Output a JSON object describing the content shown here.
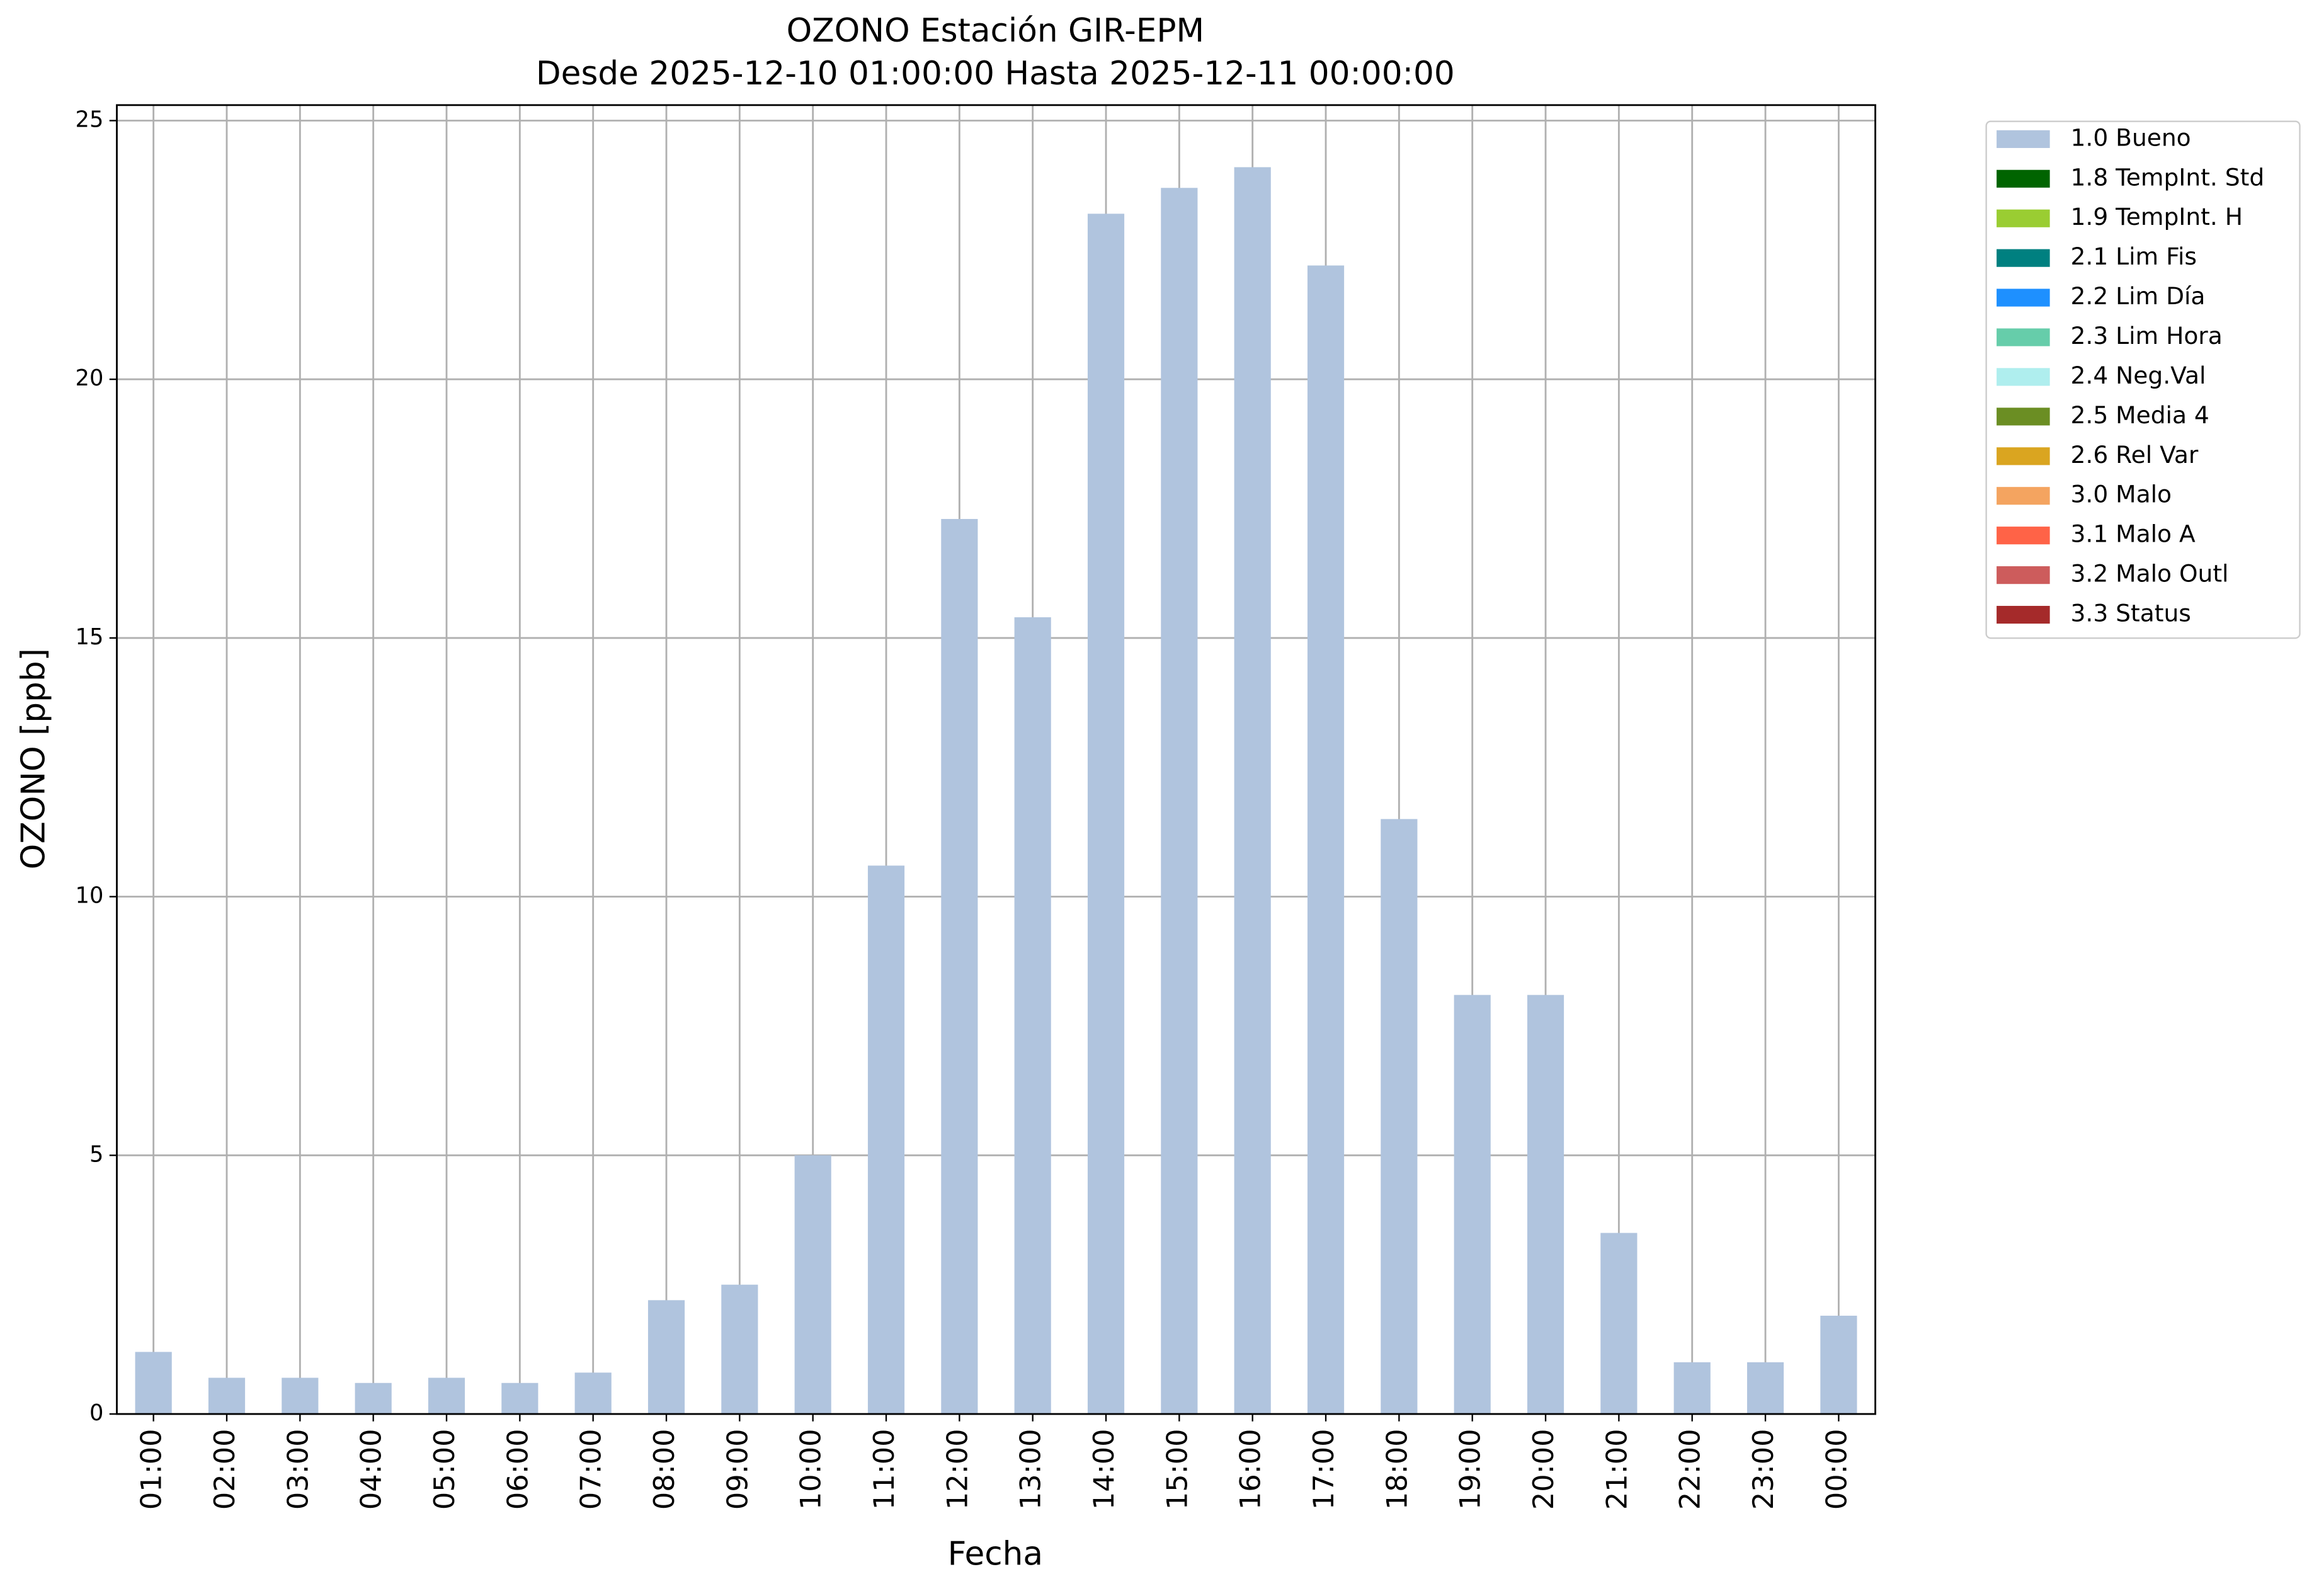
{
  "chart_data": {
    "type": "bar",
    "stacked": true,
    "title": "OZONO Estación GIR-EPM",
    "subtitle": "Desde 2025-12-10 01:00:00 Hasta 2025-12-11 00:00:00",
    "x_label": "Fecha",
    "y_label": "OZONO [ppb]",
    "categories": [
      "01:00",
      "02:00",
      "03:00",
      "04:00",
      "05:00",
      "06:00",
      "07:00",
      "08:00",
      "09:00",
      "10:00",
      "11:00",
      "12:00",
      "13:00",
      "14:00",
      "15:00",
      "16:00",
      "17:00",
      "18:00",
      "19:00",
      "20:00",
      "21:00",
      "22:00",
      "23:00",
      "00:00"
    ],
    "series": [
      {
        "name": "1.0 Bueno",
        "color": "#b0c4de",
        "values": [
          1.2,
          0.7,
          0.7,
          0.6,
          0.7,
          0.6,
          0.8,
          2.2,
          2.5,
          5.0,
          10.6,
          17.3,
          15.4,
          23.2,
          23.7,
          24.1,
          22.2,
          11.5,
          8.1,
          8.1,
          3.5,
          1.0,
          1.0,
          1.9
        ]
      },
      {
        "name": "1.8 TempInt. Std",
        "color": "#006400",
        "values": [
          null,
          null,
          null,
          null,
          null,
          null,
          null,
          null,
          null,
          null,
          null,
          null,
          null,
          null,
          null,
          null,
          null,
          null,
          null,
          null,
          null,
          null,
          null,
          null
        ]
      },
      {
        "name": "1.9 TempInt. H",
        "color": "#9acd32",
        "values": [
          null,
          null,
          null,
          null,
          null,
          null,
          null,
          null,
          null,
          null,
          null,
          null,
          null,
          null,
          null,
          null,
          null,
          null,
          null,
          null,
          null,
          null,
          null,
          null
        ]
      },
      {
        "name": "2.1 Lim Fis",
        "color": "#008080",
        "values": [
          null,
          null,
          null,
          null,
          null,
          null,
          null,
          null,
          null,
          null,
          null,
          null,
          null,
          null,
          null,
          null,
          null,
          null,
          null,
          null,
          null,
          null,
          null,
          null
        ]
      },
      {
        "name": "2.2 Lim Día",
        "color": "#1e90ff",
        "values": [
          null,
          null,
          null,
          null,
          null,
          null,
          null,
          null,
          null,
          null,
          null,
          null,
          null,
          null,
          null,
          null,
          null,
          null,
          null,
          null,
          null,
          null,
          null,
          null
        ]
      },
      {
        "name": "2.3 Lim Hora",
        "color": "#66cdaa",
        "values": [
          null,
          null,
          null,
          null,
          null,
          null,
          null,
          null,
          null,
          null,
          null,
          null,
          null,
          null,
          null,
          null,
          null,
          null,
          null,
          null,
          null,
          null,
          null,
          null
        ]
      },
      {
        "name": "2.4 Neg.Val",
        "color": "#afeeee",
        "values": [
          null,
          null,
          null,
          null,
          null,
          null,
          null,
          null,
          null,
          null,
          null,
          null,
          null,
          null,
          null,
          null,
          null,
          null,
          null,
          null,
          null,
          null,
          null,
          null
        ]
      },
      {
        "name": "2.5 Media 4",
        "color": "#6b8e23",
        "values": [
          null,
          null,
          null,
          null,
          null,
          null,
          null,
          null,
          null,
          null,
          null,
          null,
          null,
          null,
          null,
          null,
          null,
          null,
          null,
          null,
          null,
          null,
          null,
          null
        ]
      },
      {
        "name": "2.6 Rel Var",
        "color": "#daa520",
        "values": [
          null,
          null,
          null,
          null,
          null,
          null,
          null,
          null,
          null,
          null,
          null,
          null,
          null,
          null,
          null,
          null,
          null,
          null,
          null,
          null,
          null,
          null,
          null,
          null
        ]
      },
      {
        "name": "3.0 Malo",
        "color": "#f4a460",
        "values": [
          null,
          null,
          null,
          null,
          null,
          null,
          null,
          null,
          null,
          null,
          null,
          null,
          null,
          null,
          null,
          null,
          null,
          null,
          null,
          null,
          null,
          null,
          null,
          null
        ]
      },
      {
        "name": "3.1 Malo A",
        "color": "#ff6347",
        "values": [
          null,
          null,
          null,
          null,
          null,
          null,
          null,
          null,
          null,
          null,
          null,
          null,
          null,
          null,
          null,
          null,
          null,
          null,
          null,
          null,
          null,
          null,
          null,
          null
        ]
      },
      {
        "name": "3.2 Malo Outl",
        "color": "#cd5c5c",
        "values": [
          null,
          null,
          null,
          null,
          null,
          null,
          null,
          null,
          null,
          null,
          null,
          null,
          null,
          null,
          null,
          null,
          null,
          null,
          null,
          null,
          null,
          null,
          null,
          null
        ]
      },
      {
        "name": "3.3 Status",
        "color": "#a52a2a",
        "values": [
          null,
          null,
          null,
          null,
          null,
          null,
          null,
          null,
          null,
          null,
          null,
          null,
          null,
          null,
          null,
          null,
          null,
          null,
          null,
          null,
          null,
          null,
          null,
          null
        ]
      }
    ],
    "ylim": [
      0,
      25.3
    ],
    "yticks": [
      0,
      5,
      10,
      15,
      20,
      25
    ],
    "grid": true,
    "legend": "outside-right"
  }
}
